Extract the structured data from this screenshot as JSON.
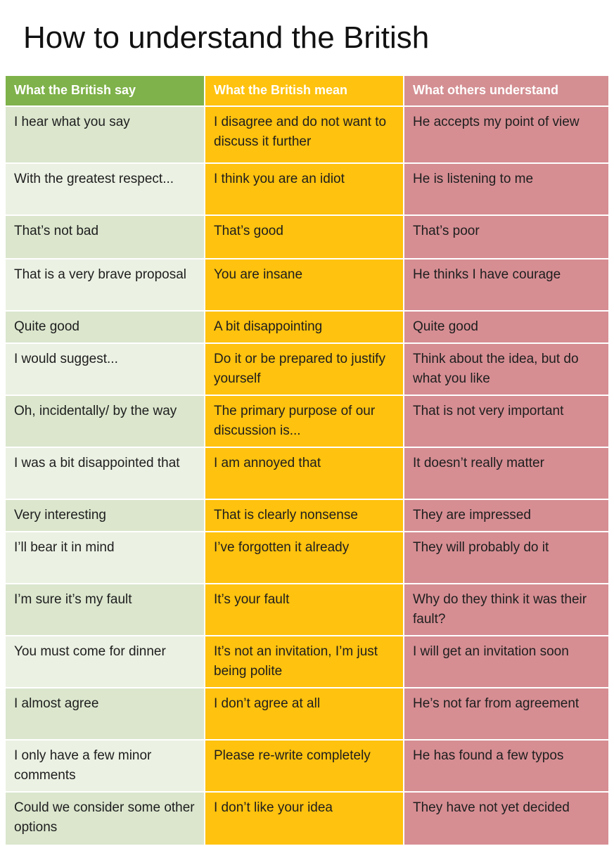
{
  "title": "How to understand the British",
  "headers": [
    "What the British say",
    "What the British mean",
    "What others understand"
  ],
  "rows": [
    [
      "I hear what you say",
      "I disagree and do not want to discuss it further",
      "He accepts my point of view"
    ],
    [
      "With the greatest respect...",
      "I think you are an idiot",
      "He is listening to me"
    ],
    [
      "That’s not bad",
      "That’s good",
      "That’s poor"
    ],
    [
      "That is a very brave proposal",
      "You are insane",
      "He thinks I have courage"
    ],
    [
      "Quite good",
      "A bit disappointing",
      "Quite good"
    ],
    [
      "I would suggest...",
      "Do it or be prepared to justify yourself",
      "Think about the idea, but do what you like"
    ],
    [
      "Oh, incidentally/ by the way",
      "The primary purpose of our discussion is...",
      "That is not very important"
    ],
    [
      "I was a bit disappointed that",
      "I am annoyed that",
      "It doesn’t really matter"
    ],
    [
      "Very interesting",
      "That is clearly nonsense",
      "They are impressed"
    ],
    [
      "I’ll bear it in mind",
      "I’ve forgotten it already",
      "They will probably do it"
    ],
    [
      "I’m sure it’s my fault",
      "It’s your fault",
      "Why do they think it was their fault?"
    ],
    [
      "You must come for dinner",
      "It’s not an invitation, I’m just being polite",
      "I will get an invitation soon"
    ],
    [
      "I almost agree",
      "I don’t agree at all",
      "He’s not far from agreement"
    ],
    [
      "I only have a few minor comments",
      "Please re-write completely",
      "He has found a few typos"
    ],
    [
      "Could we consider some other options",
      "I don’t like your idea",
      "They have not yet decided"
    ]
  ]
}
